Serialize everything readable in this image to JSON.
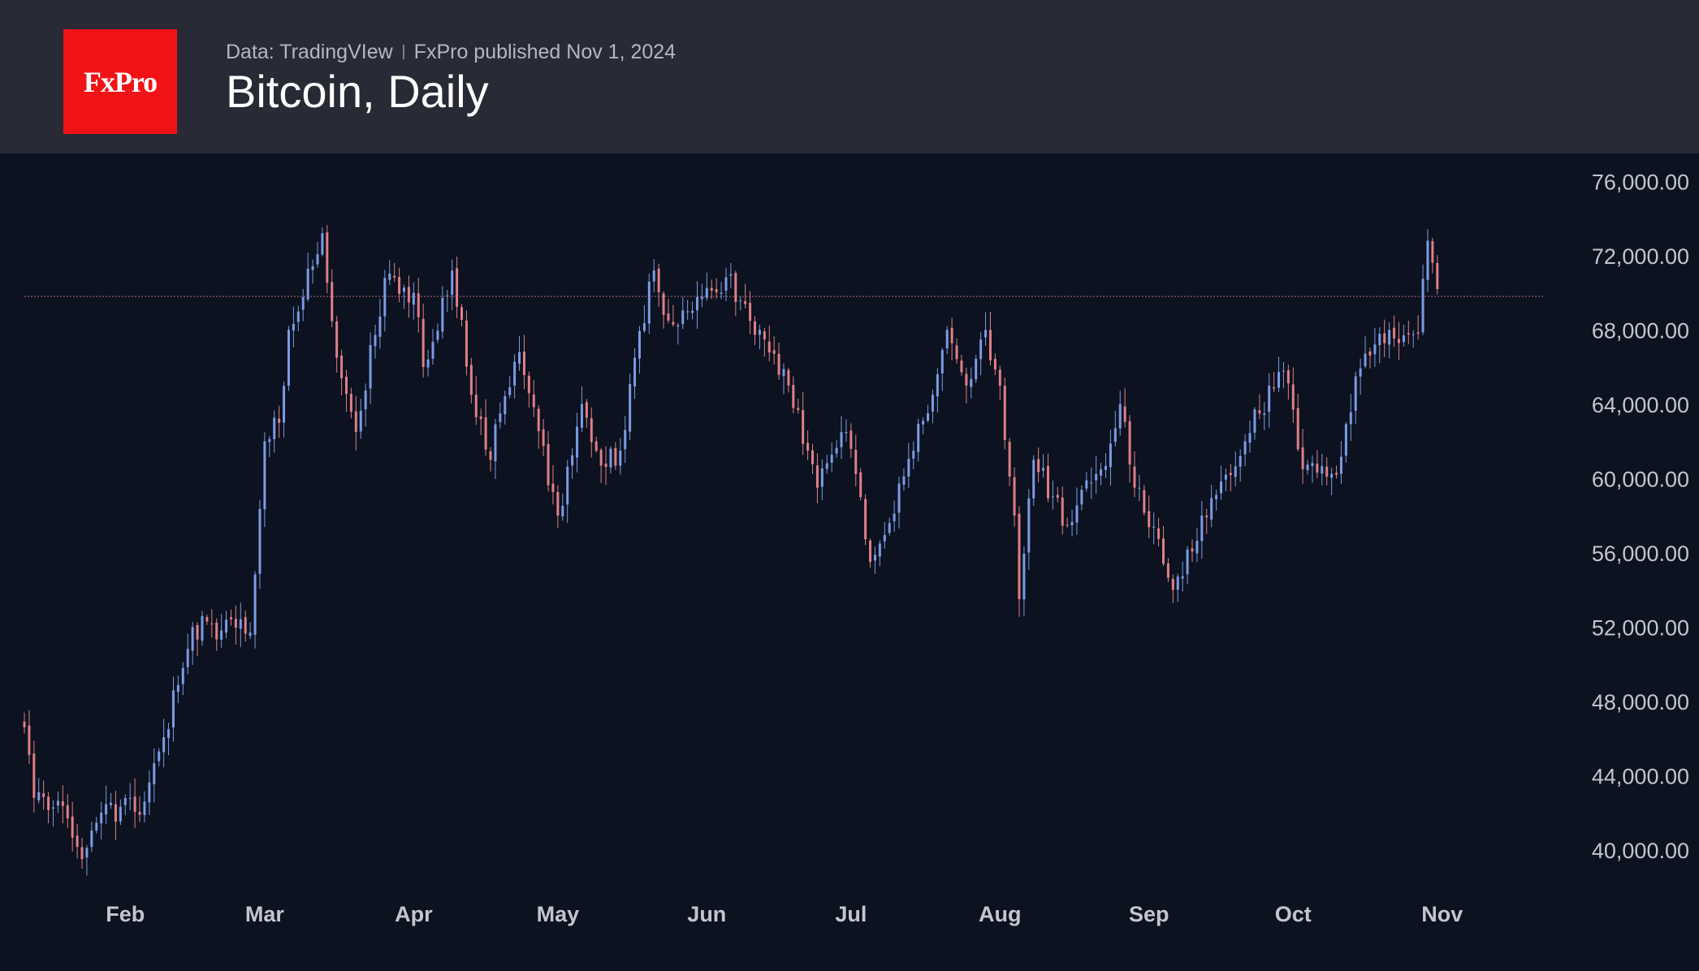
{
  "header": {
    "logo_text": "FxPro",
    "data_source": "Data: TradingVIew",
    "published": "FxPro published Nov 1, 2024",
    "title": "Bitcoin, Daily"
  },
  "colors": {
    "background": "#0c121f",
    "header_background": "#282a36",
    "logo_red": "#f21316",
    "up_candle": "#7b9be6",
    "down_candle": "#e07f86",
    "reference_line": "#b06a78"
  },
  "chart_data": {
    "type": "candlestick",
    "title": "Bitcoin, Daily",
    "xlabel": "",
    "ylabel": "",
    "ylim": [
      37500,
      77500
    ],
    "y_ticks": [
      "76,000.00",
      "72,000.00",
      "68,000.00",
      "64,000.00",
      "60,000.00",
      "56,000.00",
      "52,000.00",
      "48,000.00",
      "44,000.00",
      "40,000.00"
    ],
    "y_tick_values": [
      76000,
      72000,
      68000,
      64000,
      60000,
      56000,
      52000,
      48000,
      44000,
      40000
    ],
    "x_tick_labels": [
      "Feb",
      "Mar",
      "Apr",
      "May",
      "Jun",
      "Jul",
      "Aug",
      "Sep",
      "Oct",
      "Nov"
    ],
    "x_tick_dates": [
      "2024-02-01",
      "2024-03-01",
      "2024-04-01",
      "2024-05-01",
      "2024-06-01",
      "2024-07-01",
      "2024-08-01",
      "2024-09-01",
      "2024-10-01",
      "2024-11-01"
    ],
    "x_range": [
      "2024-01-11",
      "2024-11-22"
    ],
    "reference_line": 69800,
    "grid": false,
    "close_anchors": [
      [
        "2024-01-11",
        46600
      ],
      [
        "2024-01-13",
        42800
      ],
      [
        "2024-01-20",
        41700
      ],
      [
        "2024-01-23",
        39500
      ],
      [
        "2024-01-27",
        42000
      ],
      [
        "2024-02-05",
        42600
      ],
      [
        "2024-02-08",
        45300
      ],
      [
        "2024-02-13",
        49800
      ],
      [
        "2024-02-15",
        52000
      ],
      [
        "2024-02-27",
        51700
      ],
      [
        "2024-03-01",
        62000
      ],
      [
        "2024-03-04",
        63000
      ],
      [
        "2024-03-06",
        68000
      ],
      [
        "2024-03-13",
        73200
      ],
      [
        "2024-03-16",
        66500
      ],
      [
        "2024-03-20",
        62500
      ],
      [
        "2024-03-26",
        70800
      ],
      [
        "2024-04-01",
        70000
      ],
      [
        "2024-04-03",
        66000
      ],
      [
        "2024-04-09",
        71200
      ],
      [
        "2024-04-13",
        64500
      ],
      [
        "2024-04-17",
        61000
      ],
      [
        "2024-04-19",
        63500
      ],
      [
        "2024-04-23",
        66800
      ],
      [
        "2024-05-01",
        58000
      ],
      [
        "2024-05-06",
        64000
      ],
      [
        "2024-05-10",
        60700
      ],
      [
        "2024-05-14",
        61500
      ],
      [
        "2024-05-17",
        66500
      ],
      [
        "2024-05-21",
        71200
      ],
      [
        "2024-05-24",
        68500
      ],
      [
        "2024-05-28",
        69000
      ],
      [
        "2024-06-04",
        70000
      ],
      [
        "2024-06-06",
        71000
      ],
      [
        "2024-06-07",
        69500
      ],
      [
        "2024-06-12",
        68000
      ],
      [
        "2024-06-18",
        65000
      ],
      [
        "2024-06-24",
        59500
      ],
      [
        "2024-06-30",
        62500
      ],
      [
        "2024-07-05",
        55500
      ],
      [
        "2024-07-07",
        56500
      ],
      [
        "2024-07-14",
        61500
      ],
      [
        "2024-07-18",
        64500
      ],
      [
        "2024-07-21",
        68000
      ],
      [
        "2024-07-25",
        65000
      ],
      [
        "2024-07-29",
        68000
      ],
      [
        "2024-08-01",
        65000
      ],
      [
        "2024-08-04",
        58000
      ],
      [
        "2024-08-05",
        53500
      ],
      [
        "2024-08-08",
        61000
      ],
      [
        "2024-08-15",
        57500
      ],
      [
        "2024-08-22",
        60500
      ],
      [
        "2024-08-26",
        64000
      ],
      [
        "2024-08-29",
        59500
      ],
      [
        "2024-09-06",
        54000
      ],
      [
        "2024-09-12",
        58000
      ],
      [
        "2024-09-17",
        60200
      ],
      [
        "2024-09-24",
        63500
      ],
      [
        "2024-09-29",
        65800
      ],
      [
        "2024-10-03",
        60500
      ],
      [
        "2024-10-10",
        60200
      ],
      [
        "2024-10-14",
        65500
      ],
      [
        "2024-10-21",
        68000
      ],
      [
        "2024-10-27",
        67800
      ],
      [
        "2024-10-29",
        72800
      ],
      [
        "2024-10-31",
        70200
      ]
    ]
  }
}
